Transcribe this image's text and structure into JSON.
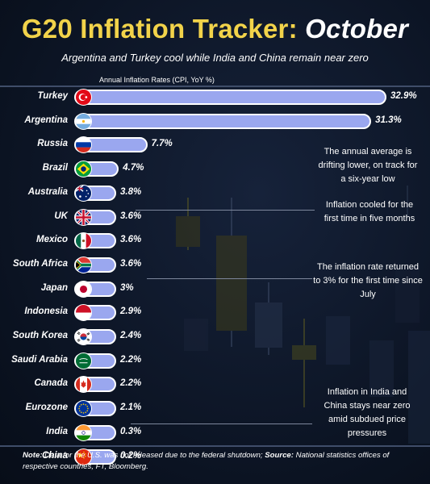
{
  "header": {
    "title_part1": "G20 Inflation Tracker:",
    "title_part2": "October",
    "subtitle": "Argentina and Turkey cool while India and China remain near zero"
  },
  "chart_data": {
    "type": "bar",
    "orientation": "horizontal",
    "title": "Annual Inflation Rates (CPI, YoY %)",
    "categories": [
      "Turkey",
      "Argentina",
      "Russia",
      "Brazil",
      "Australia",
      "UK",
      "Mexico",
      "South Africa",
      "Japan",
      "Indonesia",
      "South Korea",
      "Saudi Arabia",
      "Canada",
      "Eurozone",
      "India",
      "China"
    ],
    "values": [
      32.9,
      31.3,
      7.7,
      4.7,
      3.8,
      3.6,
      3.6,
      3.6,
      3,
      2.9,
      2.4,
      2.2,
      2.2,
      2.1,
      0.3,
      0.2
    ],
    "value_labels": [
      "32.9%",
      "31.3%",
      "7.7%",
      "4.7%",
      "3.8%",
      "3.6%",
      "3.6%",
      "3.6%",
      "3%",
      "2.9%",
      "2.4%",
      "2.2%",
      "2.2%",
      "2.1%",
      "0.3%",
      "0.2%"
    ],
    "xlim": [
      0,
      32.9
    ],
    "bar_color": "#9aa7ef"
  },
  "flags": {
    "Turkey": "turkey-flag-icon",
    "Argentina": "argentina-flag-icon",
    "Russia": "russia-flag-icon",
    "Brazil": "brazil-flag-icon",
    "Australia": "australia-flag-icon",
    "UK": "uk-flag-icon",
    "Mexico": "mexico-flag-icon",
    "South Africa": "south-africa-flag-icon",
    "Japan": "japan-flag-icon",
    "Indonesia": "indonesia-flag-icon",
    "South Korea": "south-korea-flag-icon",
    "Saudi Arabia": "saudi-arabia-flag-icon",
    "Canada": "canada-flag-icon",
    "Eurozone": "eurozone-flag-icon",
    "India": "india-flag-icon",
    "China": "china-flag-icon"
  },
  "annotations": {
    "russia": "The annual average is drifting lower, on track for a six-year low",
    "uk": "Inflation cooled for the first time in five months",
    "japan": "The inflation rate returned to 3% for the first time since July",
    "india_china": "Inflation in India and China stays near zero amid subdued price pressures"
  },
  "footer": {
    "note_label": "Note:",
    "note_text": " Data for the U.S. was not released due to the federal shutdown; ",
    "source_label": "Source:",
    "source_text": " National statistics offices of respective countries, FT, Bloomberg."
  },
  "colors": {
    "title_accent": "#f2d34a",
    "background": "#0c1424",
    "bar_fill": "#9aa7ef",
    "bar_outline": "#ffffff"
  }
}
